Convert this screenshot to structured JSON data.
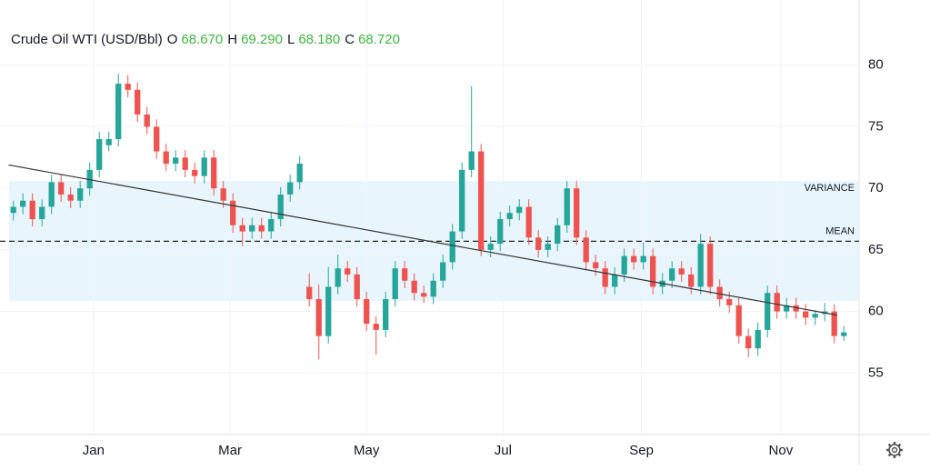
{
  "header": {
    "title": "Crude Oil WTI (USD/Bbl)",
    "ohlc": [
      {
        "key": "O",
        "value": "68.670"
      },
      {
        "key": "H",
        "value": "69.290"
      },
      {
        "key": "L",
        "value": "68.180"
      },
      {
        "key": "C",
        "value": "68.720"
      }
    ]
  },
  "chart_data": {
    "type": "candlestick",
    "up_color": "#26a69a",
    "down_color": "#ef5350",
    "grid": true,
    "xlim": [
      -1.4,
      88.6
    ],
    "xticks": [
      {
        "value": 8.4,
        "label": "Jan"
      },
      {
        "value": 22.7,
        "label": "Mar"
      },
      {
        "value": 37.0,
        "label": "May"
      },
      {
        "value": 51.3,
        "label": "Jul"
      },
      {
        "value": 65.8,
        "label": "Sep"
      },
      {
        "value": 80.4,
        "label": "Nov"
      }
    ],
    "ylim": [
      50,
      85.3
    ],
    "yticks": [
      55,
      60,
      65,
      70,
      75,
      80
    ],
    "open": [
      68,
      68.5,
      69,
      67.5,
      68.5,
      70.5,
      69.5,
      69,
      70,
      71.5,
      73.5,
      74,
      78.5,
      78,
      76,
      75,
      73,
      72,
      72.5,
      71.5,
      71,
      72.5,
      70,
      69,
      67,
      66.5,
      67,
      66.5,
      67.5,
      69.5,
      70.5,
      62,
      61,
      58,
      62,
      63.5,
      63,
      61,
      59,
      58.5,
      61,
      63.5,
      62.5,
      61.5,
      61.2,
      62.5,
      64,
      66.5,
      71.5,
      73,
      65,
      65.5,
      67.5,
      68,
      68.5,
      66,
      65,
      65.5,
      67,
      70,
      66,
      64,
      63.5,
      62,
      63,
      64.5,
      64,
      64.5,
      62,
      62.5,
      63.5,
      63,
      62,
      65.5,
      62,
      61,
      60.5,
      58,
      57,
      58.5,
      61.5,
      60,
      60.5,
      60,
      59.5,
      59.8,
      60,
      58
    ],
    "high": [
      69,
      69.6,
      69.6,
      69.1,
      71.1,
      71.1,
      70.1,
      70.6,
      72.1,
      74.6,
      74.6,
      79.3,
      79.2,
      78.6,
      76.6,
      75.6,
      73.6,
      73.1,
      73.1,
      72.1,
      73.1,
      73.1,
      70.6,
      69.6,
      67.6,
      67.6,
      67.6,
      68.1,
      70.1,
      71.1,
      72.6,
      63.1,
      62.2,
      63.6,
      64.6,
      64.1,
      63.6,
      61.6,
      59.6,
      61.6,
      64.1,
      64.1,
      63.1,
      62.1,
      63.1,
      64.6,
      67.1,
      72.1,
      78.3,
      73.6,
      66.1,
      68.1,
      68.6,
      69.1,
      69.1,
      66.6,
      66.1,
      67.6,
      70.6,
      70.6,
      66.6,
      64.6,
      64.1,
      63.6,
      65.1,
      65.1,
      65.6,
      65.1,
      63.1,
      64.1,
      64.1,
      63.6,
      66.3,
      66.1,
      62.6,
      61.6,
      61.1,
      58.6,
      59.1,
      62.1,
      62.1,
      61.1,
      61.1,
      60.6,
      60.1,
      60.7,
      60.6,
      58.8
    ],
    "low": [
      67.4,
      67.9,
      66.9,
      66.9,
      67.9,
      68.9,
      68.4,
      68.4,
      69.4,
      70.9,
      73,
      73.4,
      77.4,
      75.4,
      74.4,
      72.4,
      71.4,
      71.4,
      70.9,
      70.4,
      70.4,
      69.4,
      68.4,
      66.4,
      65.3,
      65.9,
      65.9,
      65.9,
      66.9,
      68.9,
      69.9,
      60.4,
      56.1,
      57.4,
      61.4,
      62.4,
      60.4,
      58.4,
      56.5,
      57.9,
      60.4,
      61.9,
      60.9,
      60.7,
      60.6,
      61.9,
      63.4,
      65.9,
      70.9,
      64.5,
      64.4,
      64.9,
      66.9,
      67.4,
      65.4,
      64.4,
      64.4,
      64.9,
      66.4,
      65.4,
      63.4,
      62.9,
      61.4,
      61.4,
      62.4,
      63.4,
      63.4,
      61.4,
      61.4,
      61.9,
      62.4,
      61.4,
      61.4,
      61.4,
      60.4,
      59.9,
      57.4,
      56.3,
      56.4,
      57.9,
      59.4,
      59.4,
      59.4,
      58.9,
      58.9,
      59.2,
      57.4,
      57.6
    ],
    "close": [
      68.5,
      69,
      67.5,
      68.5,
      70.5,
      69.5,
      69,
      70,
      71.5,
      74,
      74,
      78.5,
      78,
      76,
      75,
      73,
      72,
      72.5,
      71.5,
      71,
      72.5,
      70,
      69,
      67,
      66.5,
      67,
      66.5,
      67.5,
      69.5,
      70.5,
      72,
      61,
      58,
      62,
      63.5,
      63,
      61,
      59,
      58.5,
      61,
      63.5,
      62.5,
      61.5,
      61.2,
      62.5,
      64,
      66.5,
      71.5,
      73,
      65,
      65.5,
      67.5,
      68,
      68.5,
      66,
      65,
      65.5,
      67,
      70,
      66,
      64,
      63.5,
      62,
      63,
      64.5,
      64,
      64.5,
      62,
      62.5,
      63.5,
      63,
      62,
      65.5,
      62,
      61,
      60.5,
      58,
      57,
      58.5,
      61.5,
      60,
      60.5,
      60,
      59.5,
      59.8,
      60,
      58,
      58.3
    ],
    "trendline": {
      "x": [
        -0.5,
        86.3
      ],
      "y": [
        71.9,
        59.7
      ]
    },
    "mean": {
      "label": "MEAN",
      "value": 65.7
    },
    "variance": {
      "label": "VARIANCE",
      "range": [
        60.85,
        70.6
      ]
    }
  }
}
